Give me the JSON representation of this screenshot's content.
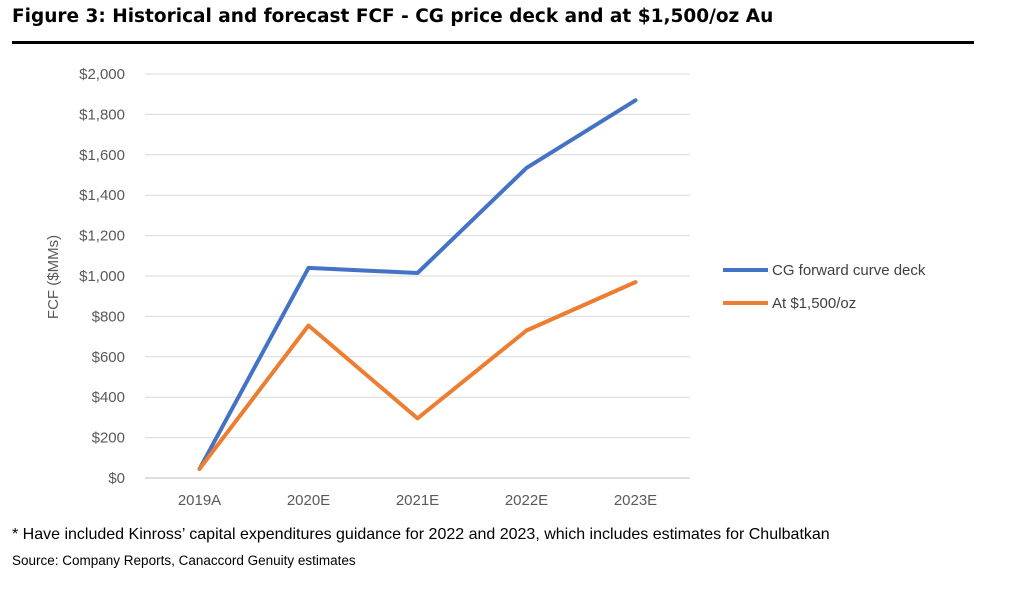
{
  "figure": {
    "title": "Figure 3: Historical and forecast FCF - CG price deck and at $1,500/oz Au",
    "footnote": "* Have included Kinross’ capital expenditures guidance for 2022 and 2023, which includes estimates for Chulbatkan",
    "source": "Source: Company Reports, Canaccord Genuity estimates"
  },
  "chart_data": {
    "type": "line",
    "title": "",
    "xlabel": "",
    "ylabel": "FCF ($MMs)",
    "categories": [
      "2019A",
      "2020E",
      "2021E",
      "2022E",
      "2023E"
    ],
    "ylim": [
      0,
      2000
    ],
    "yticks": [
      0,
      200,
      400,
      600,
      800,
      1000,
      1200,
      1400,
      1600,
      1800,
      2000
    ],
    "ytick_labels": [
      "$0",
      "$200",
      "$400",
      "$600",
      "$800",
      "$1,000",
      "$1,200",
      "$1,400",
      "$1,600",
      "$1,800",
      "$2,000"
    ],
    "grid": true,
    "legend_position": "right",
    "series": [
      {
        "name": "CG forward curve deck",
        "color": "#4472C4",
        "values": [
          45,
          1040,
          1015,
          1535,
          1870
        ]
      },
      {
        "name": "At $1,500/oz",
        "color": "#ED7D31",
        "values": [
          45,
          755,
          295,
          730,
          970
        ]
      }
    ]
  }
}
